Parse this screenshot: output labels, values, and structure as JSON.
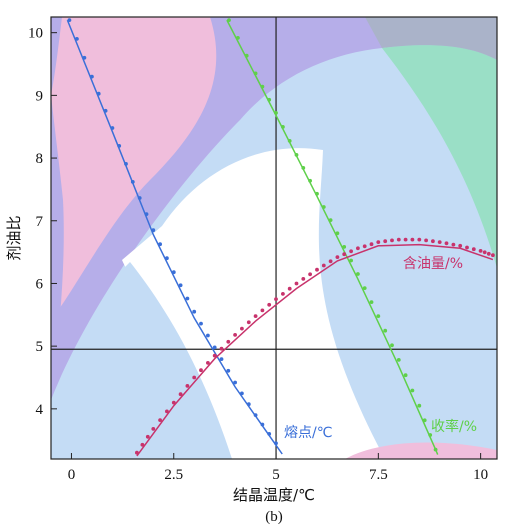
{
  "chart_data": {
    "type": "line",
    "title": "",
    "caption": "(b)",
    "xlabel": "结晶温度/℃",
    "ylabel": "剂油比",
    "xlim": [
      -0.5,
      10.4
    ],
    "ylim": [
      3.2,
      10.25
    ],
    "x_ticks": [
      0,
      2.5,
      5,
      7.5,
      10
    ],
    "x_tick_labels": [
      "0",
      "2.5",
      "5",
      "7.5",
      "10"
    ],
    "y_ticks": [
      4,
      5,
      6,
      7,
      8,
      9,
      10
    ],
    "y_tick_labels": [
      "4",
      "5",
      "6",
      "7",
      "8",
      "9",
      "10"
    ],
    "grid": false,
    "reference_lines": {
      "x": 5,
      "y": 4.95
    },
    "series": [
      {
        "name": "熔点/℃",
        "color": "#3a6fd8",
        "fit": [
          [
            -0.1,
            10.2
          ],
          [
            1.0,
            8.42
          ],
          [
            2.0,
            6.78
          ],
          [
            3.0,
            5.45
          ],
          [
            4.0,
            4.35
          ],
          [
            5.0,
            3.42
          ],
          [
            5.15,
            3.28
          ]
        ],
        "points": [
          [
            -0.05,
            10.2
          ],
          [
            0.5,
            9.3
          ],
          [
            1.0,
            8.48
          ],
          [
            1.5,
            7.62
          ],
          [
            2.0,
            6.85
          ],
          [
            2.5,
            6.18
          ],
          [
            3.0,
            5.55
          ],
          [
            3.5,
            4.98
          ],
          [
            4.0,
            4.42
          ],
          [
            4.5,
            3.9
          ],
          [
            5.0,
            3.45
          ]
        ]
      },
      {
        "name": "收率/%",
        "color": "#5fd04a",
        "fit": [
          [
            3.8,
            10.2
          ],
          [
            5.0,
            8.68
          ],
          [
            6.0,
            7.39
          ],
          [
            7.0,
            6.07
          ],
          [
            8.0,
            4.68
          ],
          [
            8.9,
            3.35
          ],
          [
            8.95,
            3.27
          ]
        ],
        "points": [
          [
            3.85,
            10.2
          ],
          [
            4.5,
            9.35
          ],
          [
            5.0,
            8.72
          ],
          [
            5.5,
            8.05
          ],
          [
            6.0,
            7.43
          ],
          [
            6.5,
            6.8
          ],
          [
            7.0,
            6.15
          ],
          [
            7.5,
            5.48
          ],
          [
            8.0,
            4.78
          ],
          [
            8.5,
            4.05
          ],
          [
            8.9,
            3.35
          ]
        ]
      },
      {
        "name": "含油量/%",
        "color": "#c8336c",
        "fit": [
          [
            1.6,
            3.25
          ],
          [
            2.5,
            4.05
          ],
          [
            3.5,
            4.8
          ],
          [
            4.5,
            5.4
          ],
          [
            5.5,
            5.92
          ],
          [
            6.5,
            6.36
          ],
          [
            7.5,
            6.6
          ],
          [
            8.5,
            6.62
          ],
          [
            9.5,
            6.56
          ],
          [
            10.3,
            6.38
          ]
        ],
        "points": [
          [
            1.6,
            3.3
          ],
          [
            2.0,
            3.68
          ],
          [
            2.5,
            4.1
          ],
          [
            3.0,
            4.5
          ],
          [
            3.5,
            4.85
          ],
          [
            4.0,
            5.18
          ],
          [
            4.5,
            5.48
          ],
          [
            5.0,
            5.75
          ],
          [
            5.5,
            6.0
          ],
          [
            6.0,
            6.22
          ],
          [
            6.5,
            6.42
          ],
          [
            7.0,
            6.56
          ],
          [
            7.5,
            6.66
          ],
          [
            8.0,
            6.7
          ],
          [
            8.5,
            6.7
          ],
          [
            9.0,
            6.66
          ],
          [
            9.5,
            6.6
          ],
          [
            10.0,
            6.52
          ],
          [
            10.3,
            6.45
          ]
        ]
      }
    ],
    "background_colors": {
      "light_blue": "#c4dcf5",
      "purple": "#b6aee9",
      "pink": "#f0bedc",
      "teal": "#9adfc6",
      "white": "#ffffff"
    }
  }
}
